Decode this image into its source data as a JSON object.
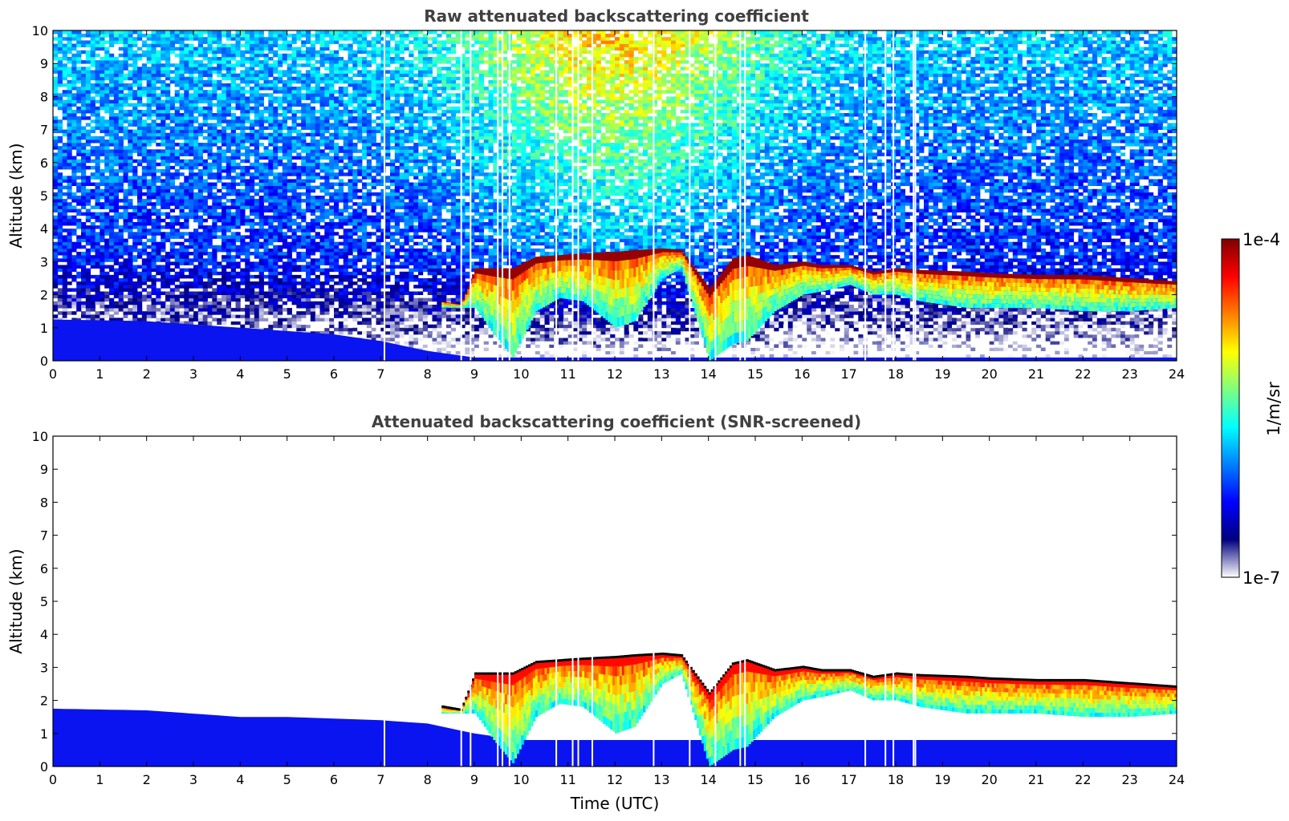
{
  "chart_data": [
    {
      "type": "heatmap",
      "title": "Raw attenuated backscattering coefficient",
      "xlabel": "",
      "ylabel": "Altitude (km)",
      "xlim": [
        0,
        24
      ],
      "ylim": [
        0,
        10
      ],
      "xticks": [
        "0",
        "1",
        "2",
        "3",
        "4",
        "5",
        "6",
        "7",
        "8",
        "9",
        "10",
        "11",
        "12",
        "13",
        "14",
        "15",
        "16",
        "17",
        "18",
        "19",
        "20",
        "21",
        "22",
        "23",
        "24"
      ],
      "yticks": [
        "0",
        "1",
        "2",
        "3",
        "4",
        "5",
        "6",
        "7",
        "8",
        "9",
        "10"
      ],
      "colormap": "jet",
      "color_scale": "log",
      "noise_above_boundary_layer": true,
      "boundary_layer_top_km": [
        [
          0,
          1.25
        ],
        [
          2,
          1.2
        ],
        [
          4,
          1.0
        ],
        [
          6,
          0.8
        ],
        [
          7,
          0.6
        ],
        [
          8,
          0.3
        ],
        [
          9,
          0.1
        ]
      ],
      "cloud_top_km": [
        [
          8.3,
          1.8
        ],
        [
          8.7,
          1.7
        ],
        [
          9.0,
          2.8
        ],
        [
          9.4,
          2.8
        ],
        [
          9.8,
          2.8
        ],
        [
          10.3,
          3.15
        ],
        [
          10.8,
          3.2
        ],
        [
          11.3,
          3.25
        ],
        [
          12.0,
          3.3
        ],
        [
          12.4,
          3.35
        ],
        [
          13.0,
          3.4
        ],
        [
          13.4,
          3.35
        ],
        [
          14.0,
          2.2
        ],
        [
          14.5,
          3.1
        ],
        [
          14.8,
          3.2
        ],
        [
          15.4,
          2.9
        ],
        [
          16.0,
          3.0
        ],
        [
          16.4,
          2.9
        ],
        [
          17.0,
          2.9
        ],
        [
          17.5,
          2.7
        ],
        [
          18.0,
          2.8
        ],
        [
          18.5,
          2.75
        ],
        [
          19.5,
          2.7
        ],
        [
          20.0,
          2.65
        ],
        [
          21.0,
          2.6
        ],
        [
          22.0,
          2.6
        ],
        [
          23.0,
          2.5
        ],
        [
          24.0,
          2.4
        ]
      ],
      "cloud_base_km": [
        [
          8.3,
          1.6
        ],
        [
          8.7,
          1.6
        ],
        [
          9.0,
          1.6
        ],
        [
          9.4,
          0.8
        ],
        [
          9.8,
          0.1
        ],
        [
          10.3,
          1.5
        ],
        [
          10.8,
          1.9
        ],
        [
          11.3,
          1.8
        ],
        [
          12.0,
          1.0
        ],
        [
          12.4,
          1.2
        ],
        [
          13.0,
          2.5
        ],
        [
          13.4,
          2.8
        ],
        [
          14.0,
          0.0
        ],
        [
          14.5,
          0.5
        ],
        [
          14.8,
          0.6
        ],
        [
          15.4,
          1.5
        ],
        [
          16.0,
          2.0
        ],
        [
          16.4,
          2.1
        ],
        [
          17.0,
          2.3
        ],
        [
          17.5,
          2.0
        ],
        [
          18.0,
          2.0
        ],
        [
          18.5,
          1.8
        ],
        [
          19.5,
          1.6
        ],
        [
          20.0,
          1.6
        ],
        [
          21.0,
          1.6
        ],
        [
          22.0,
          1.5
        ],
        [
          23.0,
          1.5
        ],
        [
          24.0,
          1.6
        ]
      ],
      "data_gaps_hours": [
        7.08,
        8.72,
        8.92,
        9.5,
        9.6,
        9.75,
        10.75,
        11.1,
        11.22,
        11.52,
        12.83,
        13.6,
        14.15,
        14.68,
        14.78,
        17.35,
        17.78,
        17.95,
        18.38,
        18.42
      ]
    },
    {
      "type": "heatmap",
      "title": "Attenuated backscattering coefficient (SNR-screened)",
      "xlabel": "Time (UTC)",
      "ylabel": "Altitude (km)",
      "xlim": [
        0,
        24
      ],
      "ylim": [
        0,
        10
      ],
      "xticks": [
        "0",
        "1",
        "2",
        "3",
        "4",
        "5",
        "6",
        "7",
        "8",
        "9",
        "10",
        "11",
        "12",
        "13",
        "14",
        "15",
        "16",
        "17",
        "18",
        "19",
        "20",
        "21",
        "22",
        "23",
        "24"
      ],
      "yticks": [
        "0",
        "1",
        "2",
        "3",
        "4",
        "5",
        "6",
        "7",
        "8",
        "9",
        "10"
      ],
      "colormap": "jet",
      "color_scale": "log",
      "noise_above_boundary_layer": false,
      "boundary_layer_top_km": [
        [
          0,
          1.75
        ],
        [
          2,
          1.7
        ],
        [
          3,
          1.6
        ],
        [
          4,
          1.5
        ],
        [
          5,
          1.5
        ],
        [
          6,
          1.45
        ],
        [
          7,
          1.4
        ],
        [
          8,
          1.3
        ],
        [
          9,
          1.0
        ],
        [
          10,
          0.8
        ]
      ],
      "cloud_top_km": [
        [
          8.3,
          1.8
        ],
        [
          8.7,
          1.7
        ],
        [
          9.0,
          2.8
        ],
        [
          9.4,
          2.8
        ],
        [
          9.8,
          2.8
        ],
        [
          10.3,
          3.15
        ],
        [
          10.8,
          3.2
        ],
        [
          11.3,
          3.25
        ],
        [
          12.0,
          3.3
        ],
        [
          12.4,
          3.35
        ],
        [
          13.0,
          3.4
        ],
        [
          13.4,
          3.35
        ],
        [
          14.0,
          2.2
        ],
        [
          14.5,
          3.1
        ],
        [
          14.8,
          3.2
        ],
        [
          15.4,
          2.9
        ],
        [
          16.0,
          3.0
        ],
        [
          16.4,
          2.9
        ],
        [
          17.0,
          2.9
        ],
        [
          17.5,
          2.7
        ],
        [
          18.0,
          2.8
        ],
        [
          18.5,
          2.75
        ],
        [
          19.5,
          2.7
        ],
        [
          20.0,
          2.65
        ],
        [
          21.0,
          2.6
        ],
        [
          22.0,
          2.6
        ],
        [
          23.0,
          2.5
        ],
        [
          24.0,
          2.4
        ]
      ],
      "cloud_base_km": [
        [
          8.3,
          1.6
        ],
        [
          8.7,
          1.6
        ],
        [
          9.0,
          1.6
        ],
        [
          9.4,
          0.8
        ],
        [
          9.8,
          0.1
        ],
        [
          10.3,
          1.5
        ],
        [
          10.8,
          1.9
        ],
        [
          11.3,
          1.8
        ],
        [
          12.0,
          1.0
        ],
        [
          12.4,
          1.2
        ],
        [
          13.0,
          2.5
        ],
        [
          13.4,
          2.8
        ],
        [
          14.0,
          0.0
        ],
        [
          14.5,
          0.5
        ],
        [
          14.8,
          0.6
        ],
        [
          15.4,
          1.5
        ],
        [
          16.0,
          2.0
        ],
        [
          16.4,
          2.1
        ],
        [
          17.0,
          2.3
        ],
        [
          17.5,
          2.0
        ],
        [
          18.0,
          2.0
        ],
        [
          18.5,
          1.8
        ],
        [
          19.5,
          1.6
        ],
        [
          20.0,
          1.6
        ],
        [
          21.0,
          1.6
        ],
        [
          22.0,
          1.5
        ],
        [
          23.0,
          1.5
        ],
        [
          24.0,
          1.6
        ]
      ],
      "data_gaps_hours": [
        7.08,
        8.72,
        8.92,
        9.5,
        9.6,
        9.75,
        10.75,
        11.1,
        11.22,
        11.52,
        12.83,
        13.6,
        14.15,
        14.68,
        14.78,
        17.35,
        17.78,
        17.95,
        18.38,
        18.42
      ]
    }
  ],
  "colorbar": {
    "label": "1/m/sr",
    "max_label": "1e-4",
    "min_label": "1e-7",
    "colors": [
      "#ffffff",
      "#00007f",
      "#0000ff",
      "#007fff",
      "#00ffff",
      "#7fff7f",
      "#ffff00",
      "#ff7f00",
      "#ff0000",
      "#7f0000"
    ]
  }
}
